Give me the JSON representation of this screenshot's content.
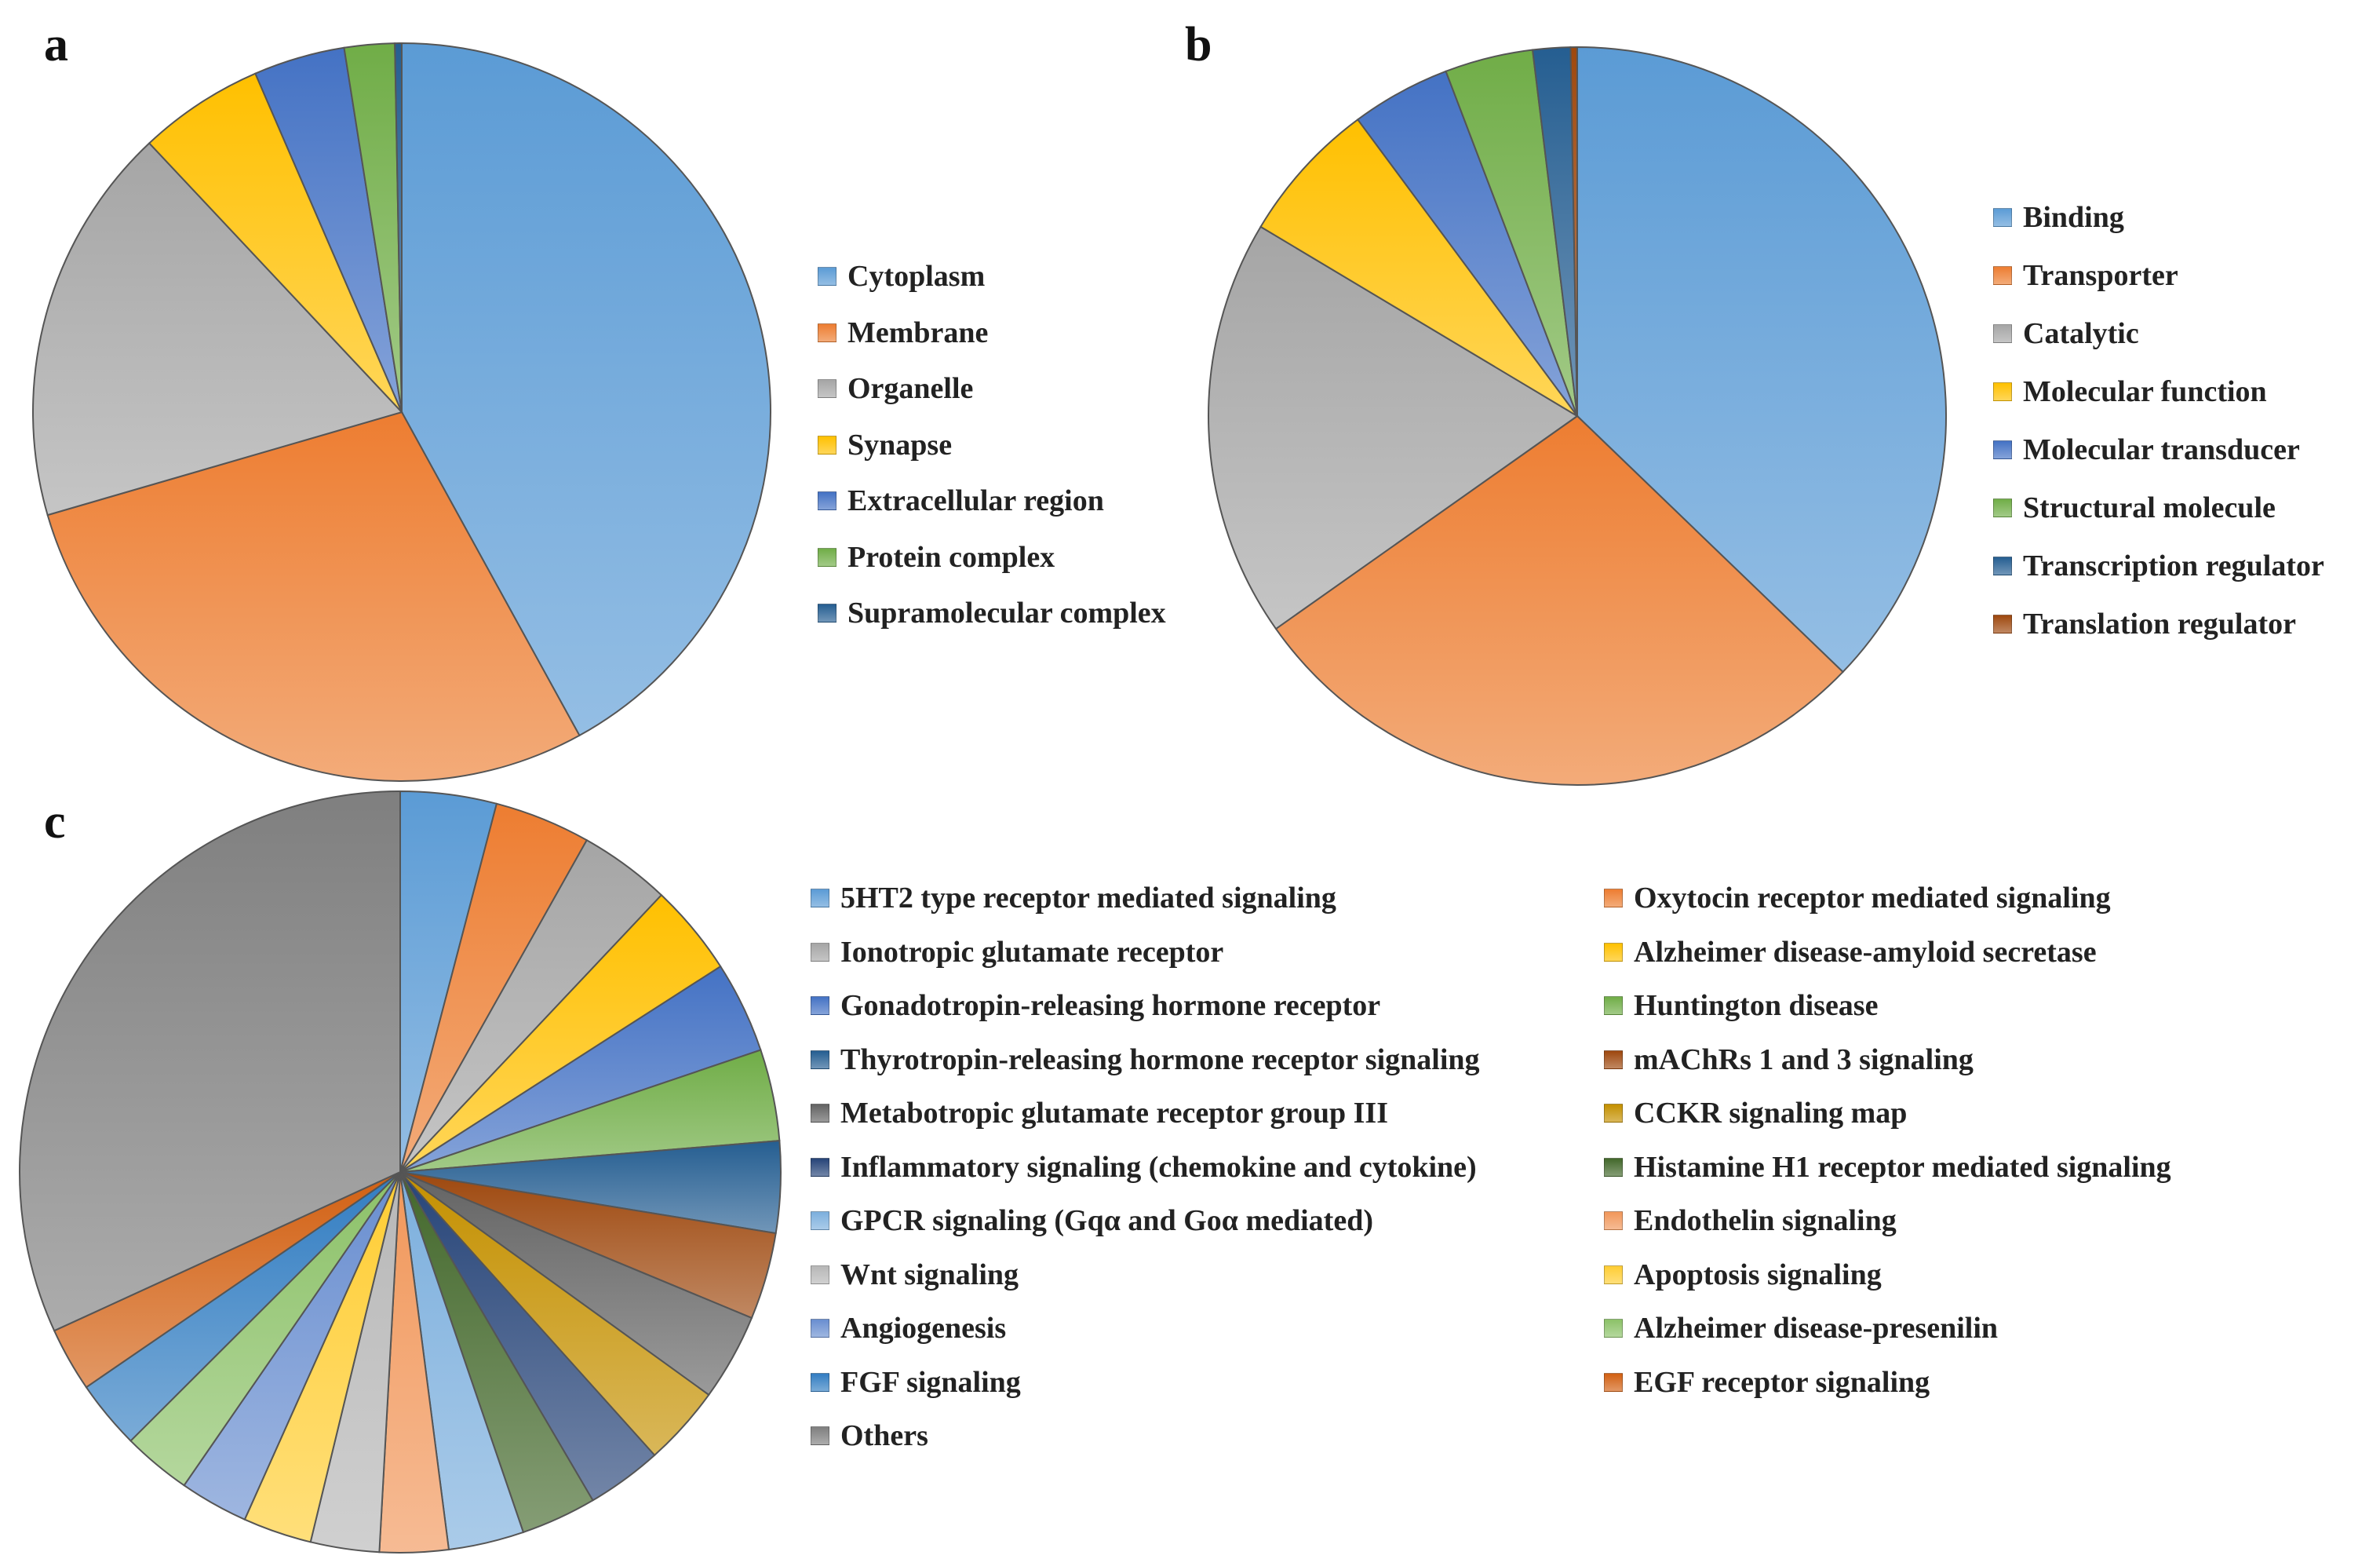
{
  "chart_data": [
    {
      "type": "pie",
      "panel": "a",
      "title": "",
      "categories": [
        "Cytoplasm",
        "Membrane",
        "Organelle",
        "Synapse",
        "Extracellular region",
        "Protein complex",
        "Supramolecular complex"
      ],
      "values": [
        42.0,
        28.5,
        17.5,
        5.5,
        4.0,
        2.2,
        0.3
      ],
      "colors": [
        "#5b9bd5",
        "#ed7d31",
        "#a5a5a5",
        "#ffc000",
        "#4472c4",
        "#70ad47",
        "#255e91"
      ],
      "legend_position": "right"
    },
    {
      "type": "pie",
      "panel": "b",
      "title": "",
      "categories": [
        "Binding",
        "Transporter",
        "Catalytic",
        "Molecular function",
        "Molecular transducer",
        "Structural molecule",
        "Transcription regulator",
        "Translation regulator"
      ],
      "values": [
        38.5,
        29.0,
        19.0,
        6.5,
        4.5,
        4.0,
        1.7,
        0.3
      ],
      "colors": [
        "#5b9bd5",
        "#ed7d31",
        "#a5a5a5",
        "#ffc000",
        "#4472c4",
        "#70ad47",
        "#255e91",
        "#9e480e"
      ],
      "legend_position": "right"
    },
    {
      "type": "pie",
      "panel": "c",
      "title": "",
      "categories": [
        "5HT2 type receptor mediated signaling",
        "Oxytocin receptor mediated signaling",
        "Ionotropic glutamate receptor",
        "Alzheimer disease-amyloid secretase",
        "Gonadotropin-releasing hormone receptor",
        "Huntington disease",
        "Thyrotropin-releasing hormone receptor signaling",
        "mAChRs 1 and 3 signaling",
        "Metabotropic glutamate receptor group III",
        "CCKR signaling map",
        "Inflammatory signaling (chemokine and cytokine)",
        "Histamine H1 receptor mediated signaling",
        "GPCR signaling (Gqα and Goα mediated)",
        "Endothelin signaling",
        "Wnt signaling",
        "Apoptosis signaling",
        "Angiogenesis",
        "Alzheimer disease-presenilin",
        "FGF signaling",
        "EGF receptor signaling",
        "Others"
      ],
      "values": [
        4.2,
        4.2,
        4.0,
        4.0,
        4.0,
        4.0,
        4.0,
        3.8,
        3.8,
        3.5,
        3.3,
        3.3,
        3.3,
        3.0,
        3.0,
        3.0,
        3.0,
        3.0,
        3.0,
        2.8,
        32.8
      ],
      "colors": [
        "#5b9bd5",
        "#ed7d31",
        "#a5a5a5",
        "#ffc000",
        "#4472c4",
        "#70ad47",
        "#255e91",
        "#9e480e",
        "#636363",
        "#c49000",
        "#264478",
        "#43682b",
        "#7cafdd",
        "#f1975a",
        "#b7b7b7",
        "#ffcd33",
        "#698ed0",
        "#8cc168",
        "#327dc2",
        "#d26012",
        "#7f7f7f"
      ],
      "legend_position": "right"
    }
  ]
}
